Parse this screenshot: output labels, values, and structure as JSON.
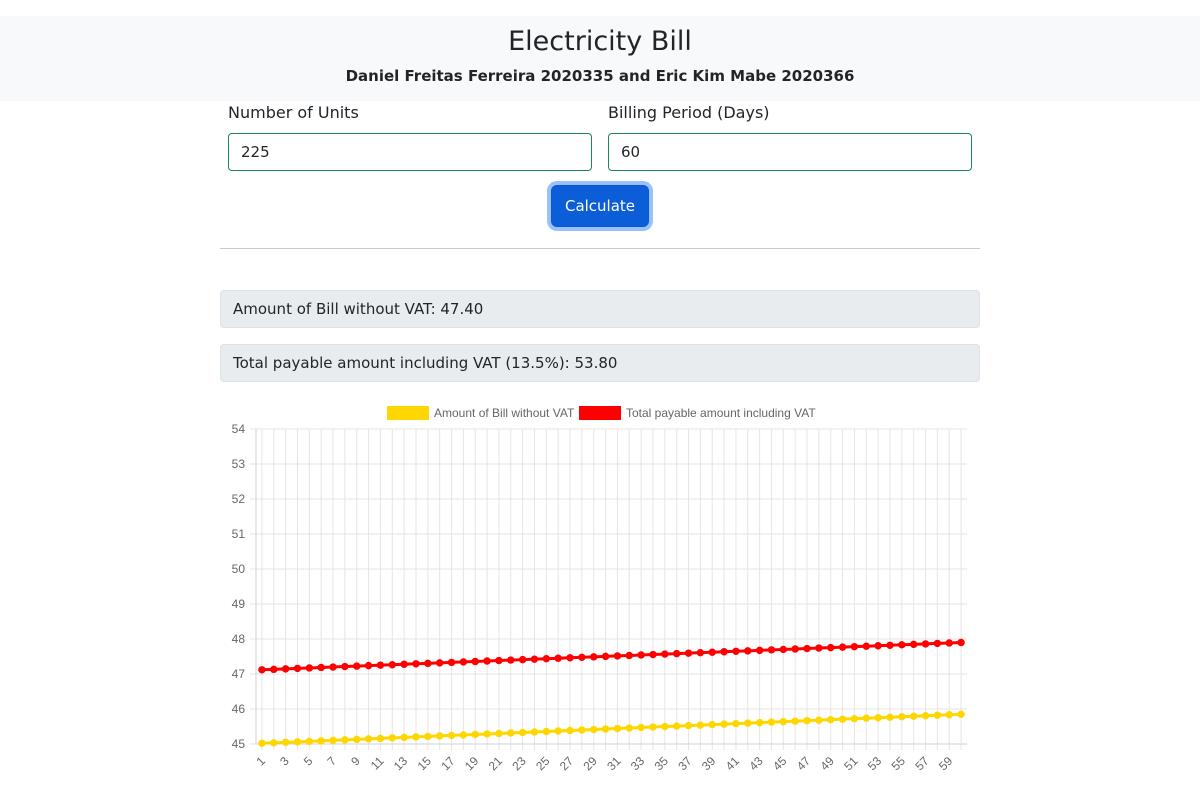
{
  "header": {
    "title": "Electricity Bill",
    "subtitle": "Daniel Freitas Ferreira 2020335 and Eric Kim Mabe 2020366"
  },
  "form": {
    "units_label": "Number of Units",
    "units_value": "225",
    "days_label": "Billing Period (Days)",
    "days_value": "60",
    "calculate_label": "Calculate"
  },
  "results": {
    "without_vat": "Amount of Bill without VAT: 47.40",
    "with_vat": "Total payable amount including VAT (13.5%): 53.80"
  },
  "colors": {
    "series_without_vat": "#ffd700",
    "series_with_vat": "#ff0000",
    "button": "#0b5ed7",
    "input_border": "#198754"
  },
  "chart_data": {
    "type": "line",
    "title": "",
    "xlabel": "",
    "ylabel": "",
    "legend_position": "top",
    "grid": true,
    "ylim": [
      45,
      54
    ],
    "y_ticks": [
      "45",
      "46",
      "47",
      "48",
      "49",
      "50",
      "51",
      "52",
      "53",
      "54"
    ],
    "x": [
      1,
      2,
      3,
      4,
      5,
      6,
      7,
      8,
      9,
      10,
      11,
      12,
      13,
      14,
      15,
      16,
      17,
      18,
      19,
      20,
      21,
      22,
      23,
      24,
      25,
      26,
      27,
      28,
      29,
      30,
      31,
      32,
      33,
      34,
      35,
      36,
      37,
      38,
      39,
      40,
      41,
      42,
      43,
      44,
      45,
      46,
      47,
      48,
      49,
      50,
      51,
      52,
      53,
      54,
      55,
      56,
      57,
      58,
      59,
      60
    ],
    "x_tick_labels": [
      "1",
      "3",
      "5",
      "7",
      "9",
      "11",
      "13",
      "15",
      "17",
      "19",
      "21",
      "23",
      "25",
      "27",
      "29",
      "31",
      "33",
      "35",
      "37",
      "39",
      "41",
      "43",
      "45",
      "47",
      "49",
      "51",
      "53",
      "55",
      "57",
      "59"
    ],
    "series": [
      {
        "name": "Amount of Bill without VAT",
        "color": "#ffd700",
        "start": 45.02,
        "end": 45.85
      },
      {
        "name": "Total payable amount including VAT",
        "color": "#ff0000",
        "start": 47.12,
        "end": 47.9
      }
    ]
  }
}
